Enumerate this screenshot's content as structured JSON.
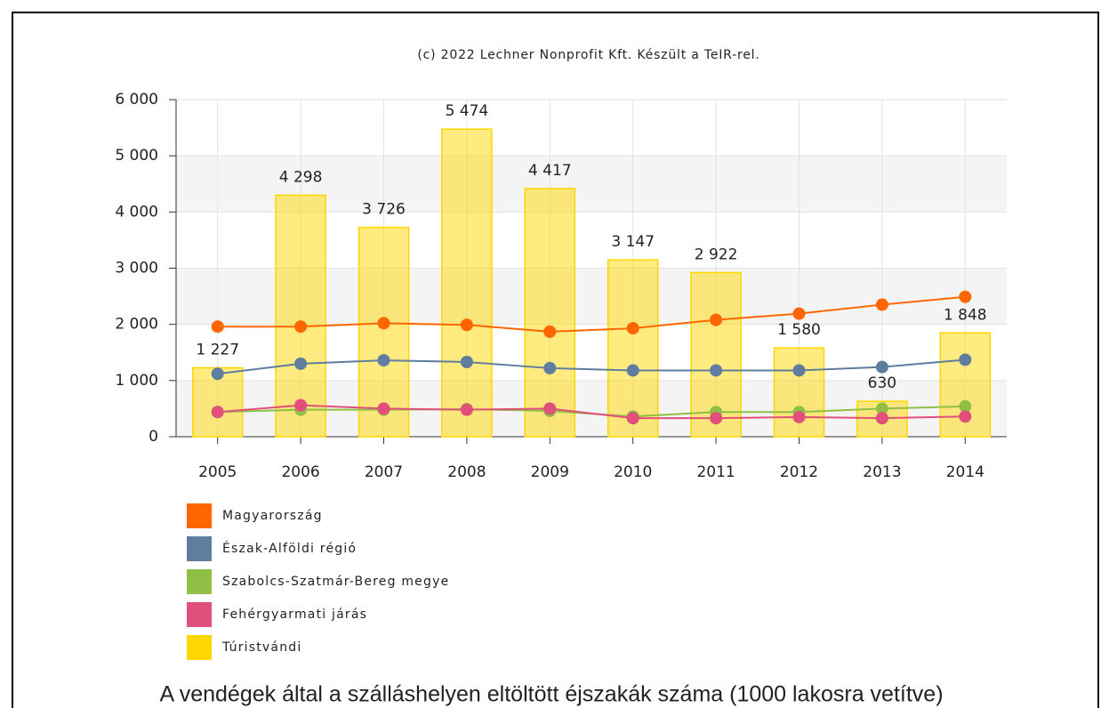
{
  "chart_data": {
    "type": "bar",
    "title": "(c) 2022 Lechner Nonprofit Kft. Készült a TeIR-rel.",
    "caption": "A vendégek által a szálláshelyen eltöltött éjszakák száma (1000 lakosra vetítve)",
    "categories": [
      "2005",
      "2006",
      "2007",
      "2008",
      "2009",
      "2010",
      "2011",
      "2012",
      "2013",
      "2014"
    ],
    "ylim": [
      0,
      6000
    ],
    "yticks": [
      0,
      {
        "value": 1000,
        "label": "1 000"
      },
      {
        "value": 2000,
        "label": "2 000"
      },
      {
        "value": 3000,
        "label": "3 000"
      },
      {
        "value": 4000,
        "label": "4 000"
      },
      {
        "value": 5000,
        "label": "5 000"
      },
      {
        "value": 6000,
        "label": "6 000"
      }
    ],
    "grid": true,
    "series": [
      {
        "name": "Magyarország",
        "type": "line",
        "color": "#ff6600",
        "values": [
          1960,
          1960,
          2020,
          1990,
          1870,
          1930,
          2080,
          2190,
          2350,
          2490
        ]
      },
      {
        "name": "Észak-Alföldi régió",
        "type": "line",
        "color": "#5f7d9e",
        "values": [
          1120,
          1300,
          1360,
          1330,
          1220,
          1180,
          1180,
          1180,
          1240,
          1370
        ]
      },
      {
        "name": "Szabolcs-Szatmár-Bereg megye",
        "type": "line",
        "color": "#8fc045",
        "values": [
          440,
          480,
          480,
          490,
          460,
          360,
          440,
          440,
          500,
          540
        ]
      },
      {
        "name": "Fehérgyarmati járás",
        "type": "line",
        "color": "#e0507a",
        "values": [
          440,
          560,
          500,
          480,
          500,
          330,
          330,
          350,
          330,
          360
        ]
      },
      {
        "name": "Túristvándi",
        "type": "bar",
        "color": "#ffd700",
        "values": [
          1227,
          4298,
          3726,
          5474,
          4417,
          3147,
          2922,
          1580,
          630,
          1848
        ],
        "value_labels": [
          "1 227",
          "4 298",
          "3 726",
          "5 474",
          "4 417",
          "3 147",
          "2 922",
          "1 580",
          "630",
          "1 848"
        ]
      }
    ]
  }
}
